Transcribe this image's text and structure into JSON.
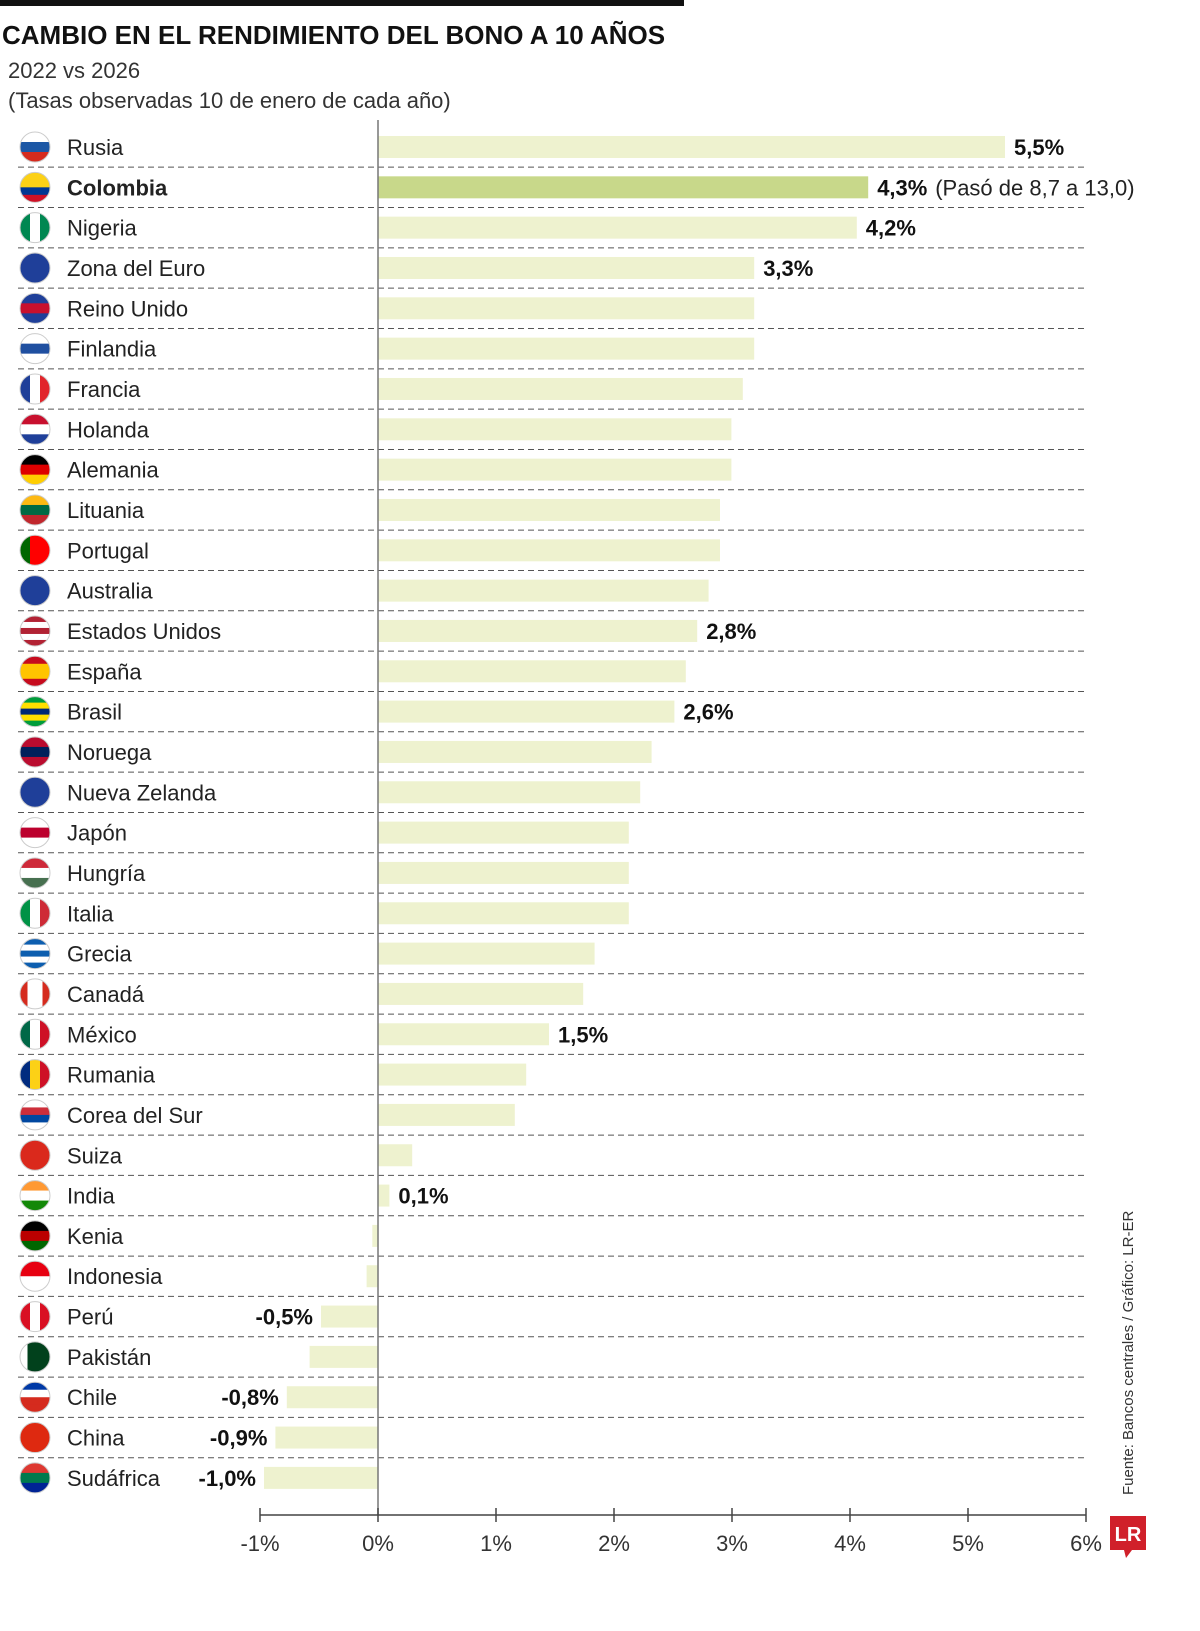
{
  "header": {
    "title": "CAMBIO EN EL RENDIMIENTO DEL BONO A 10 AÑOS",
    "subtitle": "2022 vs 2026",
    "note": "(Tasas observadas 10 de enero de cada año)"
  },
  "source": "Fuente: Bancos centrales / Gráfico: LR-ER",
  "logo": "LR",
  "colors": {
    "bar": "#eef2cf",
    "highlight": "#c8d88a",
    "logo": "#d0202a"
  },
  "chart_data": {
    "type": "bar",
    "orientation": "horizontal",
    "xlim": [
      -1,
      6
    ],
    "ticks": [
      "-1%",
      "0%",
      "1%",
      "2%",
      "3%",
      "4%",
      "5%",
      "6%"
    ],
    "tick_values": [
      -1,
      0,
      1,
      2,
      3,
      4,
      5,
      6
    ],
    "grid": false,
    "highlight": "Colombia",
    "rows": [
      {
        "name": "Rusia",
        "value": 5.5,
        "label": "5,5%",
        "flag": {
          "dir": "h",
          "colors": [
            "#ffffff",
            "#1c57a5",
            "#d52b1e"
          ]
        }
      },
      {
        "name": "Colombia",
        "value": 4.3,
        "label": "4,3%",
        "annotation": "(Pasó de 8,7 a 13,0)",
        "flag": {
          "dir": "h",
          "colors": [
            "#fcd116",
            "#fcd116",
            "#003893",
            "#ce1126"
          ]
        }
      },
      {
        "name": "Nigeria",
        "value": 4.2,
        "label": "4,2%",
        "flag": {
          "dir": "v",
          "colors": [
            "#008751",
            "#ffffff",
            "#008751"
          ]
        }
      },
      {
        "name": "Zona del Euro",
        "value": 3.3,
        "label": "3,3%",
        "flag": {
          "dir": "h",
          "colors": [
            "#1f3f99"
          ]
        }
      },
      {
        "name": "Reino Unido",
        "value": 3.3,
        "flag": {
          "dir": "h",
          "colors": [
            "#1f3f99",
            "#c8102e",
            "#1f3f99"
          ]
        }
      },
      {
        "name": "Finlandia",
        "value": 3.3,
        "flag": {
          "dir": "h",
          "colors": [
            "#ffffff",
            "#1f4fa0",
            "#ffffff"
          ]
        }
      },
      {
        "name": "Francia",
        "value": 3.2,
        "flag": {
          "dir": "v",
          "colors": [
            "#1f3f99",
            "#ffffff",
            "#e1252b"
          ]
        }
      },
      {
        "name": "Holanda",
        "value": 3.1,
        "flag": {
          "dir": "h",
          "colors": [
            "#c8102e",
            "#ffffff",
            "#1f3f99"
          ]
        }
      },
      {
        "name": "Alemania",
        "value": 3.1,
        "flag": {
          "dir": "h",
          "colors": [
            "#000000",
            "#dd0000",
            "#ffce00"
          ]
        }
      },
      {
        "name": "Lituania",
        "value": 3.0,
        "flag": {
          "dir": "h",
          "colors": [
            "#fdb913",
            "#006a44",
            "#c1272d"
          ]
        }
      },
      {
        "name": "Portugal",
        "value": 3.0,
        "flag": {
          "dir": "v",
          "colors": [
            "#006600",
            "#ff0000",
            "#ff0000"
          ]
        }
      },
      {
        "name": "Australia",
        "value": 2.9,
        "flag": {
          "dir": "h",
          "colors": [
            "#1f3f99"
          ]
        }
      },
      {
        "name": "Estados Unidos",
        "value": 2.8,
        "label": "2,8%",
        "flag": {
          "dir": "h",
          "colors": [
            "#b22234",
            "#ffffff",
            "#b22234",
            "#ffffff",
            "#b22234"
          ]
        }
      },
      {
        "name": "España",
        "value": 2.7,
        "flag": {
          "dir": "h",
          "colors": [
            "#c60b1e",
            "#ffc400",
            "#ffc400",
            "#c60b1e"
          ]
        }
      },
      {
        "name": "Brasil",
        "value": 2.6,
        "label": "2,6%",
        "flag": {
          "dir": "h",
          "colors": [
            "#009c3b",
            "#ffdf00",
            "#002776",
            "#ffdf00",
            "#009c3b"
          ]
        }
      },
      {
        "name": "Noruega",
        "value": 2.4,
        "flag": {
          "dir": "h",
          "colors": [
            "#ba0c2f",
            "#00205b",
            "#ba0c2f"
          ]
        }
      },
      {
        "name": "Nueva Zelanda",
        "value": 2.3,
        "flag": {
          "dir": "h",
          "colors": [
            "#1f3f99"
          ]
        }
      },
      {
        "name": "Japón",
        "value": 2.2,
        "flag": {
          "dir": "h",
          "colors": [
            "#ffffff",
            "#bc002d",
            "#ffffff"
          ]
        }
      },
      {
        "name": "Hungría",
        "value": 2.2,
        "flag": {
          "dir": "h",
          "colors": [
            "#ce2939",
            "#ffffff",
            "#477050"
          ]
        }
      },
      {
        "name": "Italia",
        "value": 2.2,
        "flag": {
          "dir": "v",
          "colors": [
            "#009246",
            "#ffffff",
            "#ce2b37"
          ]
        }
      },
      {
        "name": "Grecia",
        "value": 1.9,
        "flag": {
          "dir": "h",
          "colors": [
            "#0d5eaf",
            "#ffffff",
            "#0d5eaf",
            "#ffffff",
            "#0d5eaf"
          ]
        }
      },
      {
        "name": "Canadá",
        "value": 1.8,
        "flag": {
          "dir": "v",
          "colors": [
            "#d52b1e",
            "#ffffff",
            "#ffffff",
            "#d52b1e"
          ]
        }
      },
      {
        "name": "México",
        "value": 1.5,
        "label": "1,5%",
        "flag": {
          "dir": "v",
          "colors": [
            "#006847",
            "#ffffff",
            "#ce1126"
          ]
        }
      },
      {
        "name": "Rumania",
        "value": 1.3,
        "flag": {
          "dir": "v",
          "colors": [
            "#002b7f",
            "#fcd116",
            "#ce1126"
          ]
        }
      },
      {
        "name": "Corea del Sur",
        "value": 1.2,
        "flag": {
          "dir": "h",
          "colors": [
            "#ffffff",
            "#cd2e3a",
            "#0047a0",
            "#ffffff"
          ]
        }
      },
      {
        "name": "Suiza",
        "value": 0.3,
        "flag": {
          "dir": "h",
          "colors": [
            "#da291c"
          ]
        }
      },
      {
        "name": "India",
        "value": 0.1,
        "label": "0,1%",
        "flag": {
          "dir": "h",
          "colors": [
            "#ff9933",
            "#ffffff",
            "#138808"
          ]
        }
      },
      {
        "name": "Kenia",
        "value": -0.05,
        "flag": {
          "dir": "h",
          "colors": [
            "#000000",
            "#bb0000",
            "#006600"
          ]
        }
      },
      {
        "name": "Indonesia",
        "value": -0.1,
        "flag": {
          "dir": "h",
          "colors": [
            "#e70011",
            "#ffffff"
          ]
        }
      },
      {
        "name": "Perú",
        "value": -0.5,
        "label": "-0,5%",
        "flag": {
          "dir": "v",
          "colors": [
            "#d91023",
            "#ffffff",
            "#d91023"
          ]
        }
      },
      {
        "name": "Pakistán",
        "value": -0.6,
        "flag": {
          "dir": "v",
          "colors": [
            "#ffffff",
            "#01411c",
            "#01411c",
            "#01411c"
          ]
        }
      },
      {
        "name": "Chile",
        "value": -0.8,
        "label": "-0,8%",
        "flag": {
          "dir": "h",
          "colors": [
            "#0039a6",
            "#ffffff",
            "#d52b1e",
            "#d52b1e"
          ]
        }
      },
      {
        "name": "China",
        "value": -0.9,
        "label": "-0,9%",
        "flag": {
          "dir": "h",
          "colors": [
            "#de2910"
          ]
        }
      },
      {
        "name": "Sudáfrica",
        "value": -1.0,
        "label": "-1,0%",
        "flag": {
          "dir": "h",
          "colors": [
            "#de3831",
            "#007a4d",
            "#002395"
          ]
        }
      }
    ]
  }
}
